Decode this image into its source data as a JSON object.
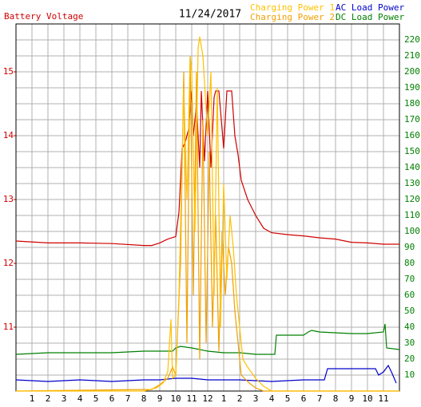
{
  "chart_data": {
    "type": "line",
    "title": "11/24/2017",
    "y_label": "Battery Voltage",
    "y_label_color": "#d00000",
    "y2_color": "#008000",
    "grid": true,
    "xlim": [
      0,
      24
    ],
    "xticks": [
      {
        "value": 1,
        "label": "1"
      },
      {
        "value": 2,
        "label": "2"
      },
      {
        "value": 3,
        "label": "3"
      },
      {
        "value": 4,
        "label": "4"
      },
      {
        "value": 5,
        "label": "5"
      },
      {
        "value": 6,
        "label": "6"
      },
      {
        "value": 7,
        "label": "7"
      },
      {
        "value": 8,
        "label": "8"
      },
      {
        "value": 9,
        "label": "9"
      },
      {
        "value": 10,
        "label": "10"
      },
      {
        "value": 11,
        "label": "11"
      },
      {
        "value": 12,
        "label": "12"
      },
      {
        "value": 13,
        "label": "1"
      },
      {
        "value": 14,
        "label": "2"
      },
      {
        "value": 15,
        "label": "3"
      },
      {
        "value": 16,
        "label": "4"
      },
      {
        "value": 17,
        "label": "5"
      },
      {
        "value": 18,
        "label": "6"
      },
      {
        "value": 19,
        "label": "7"
      },
      {
        "value": 20,
        "label": "8"
      },
      {
        "value": 21,
        "label": "9"
      },
      {
        "value": 22,
        "label": "10"
      },
      {
        "value": 23,
        "label": "11"
      }
    ],
    "ylim": [
      10,
      15.75
    ],
    "yticks": [
      11,
      12,
      13,
      14,
      15
    ],
    "y2lim": [
      0,
      230
    ],
    "y2ticks": [
      10,
      20,
      30,
      40,
      50,
      60,
      70,
      80,
      90,
      100,
      110,
      120,
      130,
      140,
      150,
      160,
      170,
      180,
      190,
      200,
      210,
      220
    ],
    "series": [
      {
        "name": "Battery Voltage",
        "color": "#d00000",
        "x": [
          0,
          2,
          4,
          6,
          8,
          8.5,
          9,
          9.5,
          10,
          10.2,
          10.4,
          10.6,
          10.8,
          11,
          11.1,
          11.3,
          11.5,
          11.6,
          11.8,
          12,
          12.2,
          12.4,
          12.5,
          12.7,
          13,
          13.2,
          13.5,
          13.7,
          13.9,
          14.1,
          14.5,
          15,
          15.5,
          16,
          17,
          18,
          19,
          20,
          21,
          22,
          23,
          23.5,
          24
        ],
        "values": [
          12.35,
          12.32,
          12.32,
          12.31,
          12.28,
          12.28,
          12.32,
          12.38,
          12.42,
          12.8,
          13.8,
          13.9,
          14.1,
          14.7,
          14.0,
          14.5,
          13.5,
          14.7,
          13.6,
          14.7,
          13.5,
          14.6,
          14.7,
          14.7,
          13.8,
          14.7,
          14.7,
          14.0,
          13.7,
          13.3,
          13.0,
          12.75,
          12.55,
          12.48,
          12.45,
          12.43,
          12.4,
          12.38,
          12.33,
          12.32,
          12.3,
          12.3,
          12.3
        ]
      },
      {
        "name": "Charging Power 1",
        "color": "#ffc000",
        "axis": "y2",
        "x": [
          0,
          8,
          8.8,
          9.2,
          9.5,
          9.7,
          9.8,
          10,
          10.2,
          10.5,
          10.7,
          10.9,
          11,
          11.2,
          11.4,
          11.5,
          11.7,
          12,
          12.2,
          12.4,
          12.6,
          12.8,
          13,
          13.2,
          13.4,
          13.6,
          13.8,
          14,
          14.2,
          14.5,
          15,
          15.5,
          16,
          24
        ],
        "values": [
          0,
          0,
          2,
          5,
          12,
          45,
          8,
          10,
          60,
          190,
          120,
          210,
          200,
          100,
          215,
          222,
          210,
          160,
          200,
          60,
          190,
          40,
          130,
          70,
          110,
          90,
          60,
          40,
          20,
          15,
          8,
          3,
          0,
          0
        ]
      },
      {
        "name": "Charging Power 2",
        "color": "#f0a000",
        "axis": "y2",
        "x": [
          0,
          8.5,
          9,
          9.5,
          9.8,
          10,
          10.3,
          10.5,
          10.7,
          10.9,
          11.1,
          11.3,
          11.5,
          11.7,
          11.9,
          12.1,
          12.3,
          12.5,
          12.7,
          12.9,
          13.1,
          13.3,
          13.5,
          13.7,
          13.9,
          14.1,
          14.3,
          14.6,
          15,
          15.5,
          24
        ],
        "values": [
          0,
          1,
          4,
          8,
          15,
          10,
          80,
          200,
          30,
          210,
          60,
          200,
          20,
          170,
          30,
          150,
          40,
          110,
          25,
          100,
          60,
          90,
          80,
          50,
          30,
          10,
          8,
          5,
          2,
          0,
          0
        ]
      },
      {
        "name": "AC Load Power",
        "color": "#0000cc",
        "axis": "y2",
        "x": [
          0,
          2,
          4,
          6,
          8,
          9,
          10,
          11,
          12,
          14,
          16,
          18,
          19.3,
          19.5,
          21,
          22.5,
          22.7,
          23,
          23.3,
          23.5,
          23.8
        ],
        "values": [
          7,
          6,
          7,
          6,
          7,
          7,
          8,
          8,
          7,
          7,
          6,
          7,
          7,
          14,
          14,
          14,
          10,
          12,
          16,
          12,
          5
        ]
      },
      {
        "name": "DC Load Power",
        "color": "#008000",
        "axis": "y2",
        "x": [
          0,
          2,
          4,
          6,
          8,
          9.8,
          10,
          10.3,
          11,
          12,
          13,
          14,
          15,
          16,
          16.2,
          16.3,
          18,
          18.3,
          18.5,
          19,
          21,
          22,
          23,
          23.1,
          23.2,
          24
        ],
        "values": [
          23,
          24,
          24,
          24,
          25,
          25,
          27,
          28,
          27,
          25,
          24,
          24,
          23,
          23,
          23,
          35,
          35,
          37,
          38,
          37,
          36,
          36,
          37,
          42,
          27,
          26
        ]
      }
    ]
  }
}
